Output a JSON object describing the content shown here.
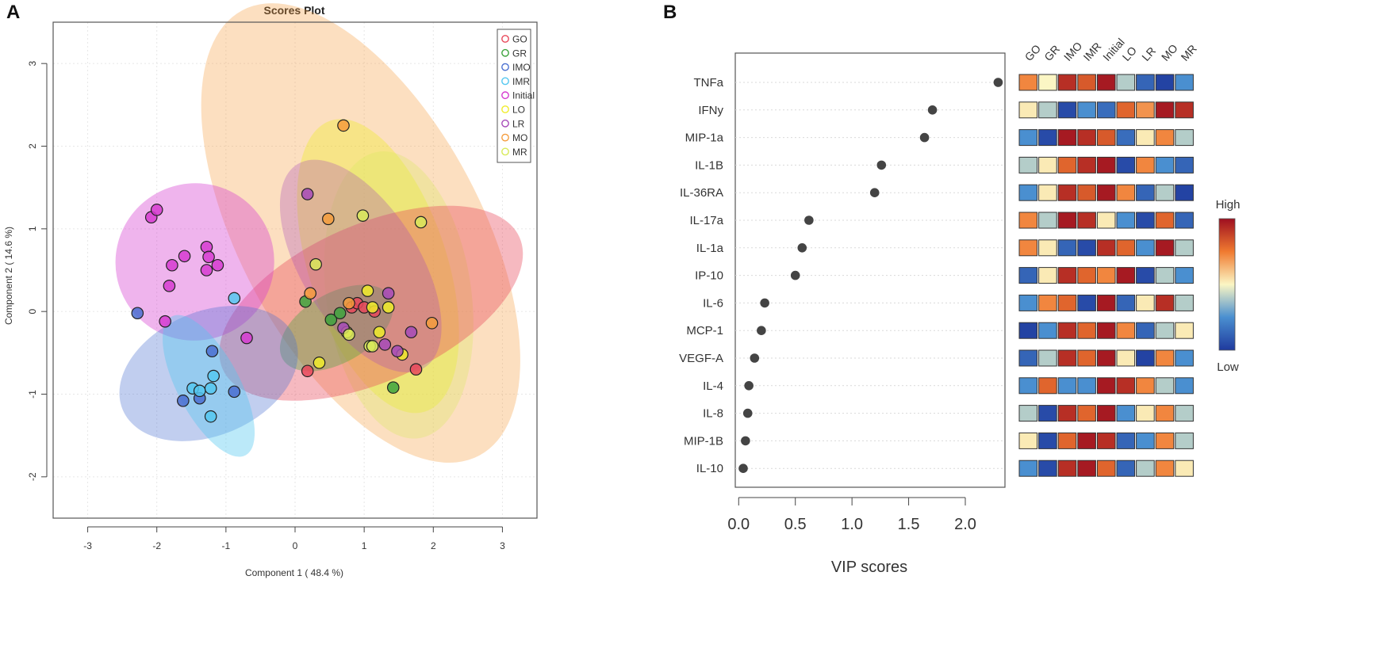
{
  "panel_labels": {
    "a": "A",
    "b": "B"
  },
  "colors": {
    "GO": "#e8485a",
    "GR": "#3da33d",
    "IMO": "#4a6fd0",
    "IMR": "#55c8f0",
    "Initial": "#d63bd0",
    "LO": "#f0ec2a",
    "LR": "#a64ab8",
    "MO": "#f59c3c",
    "MR": "#d8ea5a",
    "heat_low": "#1f3a9e",
    "heat_mid": "#fbf6c4",
    "heat_high": "#9e0f20"
  },
  "chart_data": [
    {
      "type": "scatter",
      "title": "Scores Plot",
      "xlabel": "Component 1 ( 48.4 %)",
      "ylabel": "Component 2 ( 14.6 %)",
      "xlim": [
        -3.5,
        3.5
      ],
      "ylim": [
        -2.5,
        3.5
      ],
      "x_ticks": [
        "-3",
        "-2",
        "-1",
        "0",
        "1",
        "2",
        "3"
      ],
      "y_ticks": [
        "-2",
        "-1",
        "0",
        "1",
        "2",
        "3"
      ],
      "legend": [
        "GO",
        "GR",
        "IMO",
        "IMR",
        "Initial",
        "LO",
        "LR",
        "MO",
        "MR"
      ],
      "legend_position": "top-right",
      "ellipses": [
        {
          "group": "MO",
          "cx": 0.95,
          "cy": 0.95,
          "rx": 1.75,
          "ry": 3.05,
          "angle": -28,
          "opacity": 0.32
        },
        {
          "group": "LO",
          "cx": 1.2,
          "cy": 0.55,
          "rx": 1.0,
          "ry": 1.85,
          "angle": -18,
          "opacity": 0.38
        },
        {
          "group": "MR",
          "cx": 1.5,
          "cy": 0.2,
          "rx": 1.05,
          "ry": 1.75,
          "angle": -8,
          "opacity": 0.3
        },
        {
          "group": "GO",
          "cx": 1.1,
          "cy": 0.1,
          "rx": 2.35,
          "ry": 0.95,
          "angle": -24,
          "opacity": 0.38
        },
        {
          "group": "GR",
          "cx": 0.6,
          "cy": -0.2,
          "rx": 0.9,
          "ry": 0.42,
          "angle": -30,
          "opacity": 0.35
        },
        {
          "group": "LR",
          "cx": 0.95,
          "cy": 0.55,
          "rx": 0.85,
          "ry": 1.45,
          "angle": -32,
          "opacity": 0.3
        },
        {
          "group": "Initial",
          "cx": -1.45,
          "cy": 0.6,
          "rx": 1.15,
          "ry": 0.95,
          "angle": -22,
          "opacity": 0.38
        },
        {
          "group": "IMO",
          "cx": -1.25,
          "cy": -0.75,
          "rx": 1.35,
          "ry": 0.75,
          "angle": -23,
          "opacity": 0.34
        },
        {
          "group": "IMR",
          "cx": -1.25,
          "cy": -0.9,
          "rx": 0.45,
          "ry": 0.95,
          "angle": -28,
          "opacity": 0.4
        }
      ],
      "series": [
        {
          "name": "GO",
          "points": [
            [
              0.82,
              0.05
            ],
            [
              0.9,
              0.1
            ],
            [
              1.0,
              0.05
            ],
            [
              1.15,
              -0.0
            ],
            [
              1.75,
              -0.7
            ],
            [
              0.18,
              -0.72
            ]
          ]
        },
        {
          "name": "GR",
          "points": [
            [
              0.15,
              0.12
            ],
            [
              0.52,
              -0.1
            ],
            [
              0.65,
              -0.02
            ],
            [
              1.42,
              -0.92
            ]
          ]
        },
        {
          "name": "IMO",
          "points": [
            [
              -2.28,
              -0.02
            ],
            [
              -1.2,
              -0.48
            ],
            [
              -0.88,
              -0.97
            ],
            [
              -1.38,
              -1.05
            ],
            [
              -1.62,
              -1.08
            ]
          ]
        },
        {
          "name": "IMR",
          "points": [
            [
              -1.48,
              -0.93
            ],
            [
              -1.38,
              -0.96
            ],
            [
              -1.22,
              -0.93
            ],
            [
              -1.18,
              -0.78
            ],
            [
              -1.22,
              -1.27
            ],
            [
              -0.88,
              0.16
            ]
          ]
        },
        {
          "name": "Initial",
          "points": [
            [
              -2.08,
              1.14
            ],
            [
              -2.0,
              1.23
            ],
            [
              -1.78,
              0.56
            ],
            [
              -1.6,
              0.67
            ],
            [
              -1.28,
              0.78
            ],
            [
              -1.25,
              0.66
            ],
            [
              -1.28,
              0.5
            ],
            [
              -1.12,
              0.56
            ],
            [
              -1.82,
              0.31
            ],
            [
              -1.88,
              -0.12
            ],
            [
              -0.7,
              -0.32
            ]
          ]
        },
        {
          "name": "LO",
          "points": [
            [
              1.05,
              0.25
            ],
            [
              1.12,
              0.05
            ],
            [
              1.35,
              0.05
            ],
            [
              1.22,
              -0.25
            ],
            [
              1.55,
              -0.52
            ],
            [
              0.35,
              -0.62
            ],
            [
              0.75,
              -0.25
            ]
          ]
        },
        {
          "name": "LR",
          "points": [
            [
              0.18,
              1.42
            ],
            [
              0.7,
              -0.2
            ],
            [
              1.35,
              0.22
            ],
            [
              1.3,
              -0.4
            ],
            [
              1.48,
              -0.48
            ],
            [
              1.68,
              -0.25
            ]
          ]
        },
        {
          "name": "MO",
          "points": [
            [
              0.7,
              2.25
            ],
            [
              0.48,
              1.12
            ],
            [
              0.22,
              0.22
            ],
            [
              0.78,
              0.1
            ],
            [
              1.98,
              -0.14
            ]
          ]
        },
        {
          "name": "MR",
          "points": [
            [
              0.98,
              1.16
            ],
            [
              1.82,
              1.08
            ],
            [
              0.3,
              0.57
            ],
            [
              1.08,
              -0.42
            ],
            [
              1.12,
              -0.42
            ],
            [
              0.78,
              -0.28
            ]
          ]
        }
      ]
    },
    {
      "type": "dot",
      "xlabel": "VIP scores",
      "xlim": [
        -0.03,
        2.35
      ],
      "x_ticks": [
        "0.0",
        "0.5",
        "1.0",
        "1.5",
        "2.0"
      ],
      "features": [
        "TNFa",
        "IFNy",
        "MIP-1a",
        "IL-1B",
        "IL-36RA",
        "IL-17a",
        "IL-1a",
        "IP-10",
        "IL-6",
        "MCP-1",
        "VEGF-A",
        "IL-4",
        "IL-8",
        "MIP-1B",
        "IL-10"
      ],
      "values": [
        2.29,
        1.71,
        1.64,
        1.26,
        1.2,
        0.62,
        0.56,
        0.5,
        0.23,
        0.2,
        0.14,
        0.09,
        0.08,
        0.06,
        0.04
      ]
    },
    {
      "type": "heatmap",
      "columns": [
        "GO",
        "GR",
        "IMO",
        "IMR",
        "Initial",
        "LO",
        "LR",
        "MO",
        "MR"
      ],
      "rows": [
        "TNFa",
        "IFNy",
        "MIP-1a",
        "IL-1B",
        "IL-36RA",
        "IL-17a",
        "IL-1a",
        "IP-10",
        "IL-6",
        "MCP-1",
        "VEGF-A",
        "IL-4",
        "IL-8",
        "MIP-1B",
        "IL-10"
      ],
      "scale": {
        "min_label": "Low",
        "max_label": "High",
        "range": [
          -1,
          1
        ]
      },
      "values": [
        [
          0.45,
          0.0,
          0.85,
          0.65,
          0.95,
          -0.2,
          -0.75,
          -0.95,
          -0.5
        ],
        [
          0.05,
          -0.2,
          -0.9,
          -0.5,
          -0.7,
          0.6,
          0.4,
          0.95,
          0.85
        ],
        [
          -0.5,
          -0.9,
          0.95,
          0.85,
          0.65,
          -0.7,
          0.05,
          0.45,
          -0.2
        ],
        [
          -0.2,
          0.05,
          0.6,
          0.85,
          0.95,
          -0.9,
          0.45,
          -0.5,
          -0.75
        ],
        [
          -0.5,
          0.05,
          0.85,
          0.65,
          0.95,
          0.45,
          -0.75,
          -0.2,
          -0.95
        ],
        [
          0.45,
          -0.2,
          0.95,
          0.85,
          0.05,
          -0.5,
          -0.9,
          0.6,
          -0.75
        ],
        [
          0.45,
          0.05,
          -0.75,
          -0.9,
          0.85,
          0.6,
          -0.5,
          0.95,
          -0.2
        ],
        [
          -0.75,
          0.05,
          0.85,
          0.6,
          0.45,
          0.95,
          -0.9,
          -0.2,
          -0.5
        ],
        [
          -0.5,
          0.45,
          0.6,
          -0.9,
          0.95,
          -0.75,
          0.05,
          0.85,
          -0.2
        ],
        [
          -0.95,
          -0.5,
          0.85,
          0.6,
          0.95,
          0.45,
          -0.75,
          -0.2,
          0.05
        ],
        [
          -0.75,
          -0.2,
          0.85,
          0.6,
          0.95,
          0.05,
          -0.95,
          0.45,
          -0.5
        ],
        [
          -0.5,
          0.6,
          -0.5,
          -0.5,
          0.95,
          0.85,
          0.45,
          -0.2,
          -0.5
        ],
        [
          -0.2,
          -0.9,
          0.85,
          0.6,
          0.95,
          -0.5,
          0.05,
          0.45,
          -0.2
        ],
        [
          0.05,
          -0.9,
          0.6,
          0.95,
          0.85,
          -0.75,
          -0.5,
          0.45,
          -0.2
        ],
        [
          -0.5,
          -0.9,
          0.85,
          0.95,
          0.6,
          -0.75,
          -0.2,
          0.45,
          0.05
        ]
      ]
    }
  ]
}
